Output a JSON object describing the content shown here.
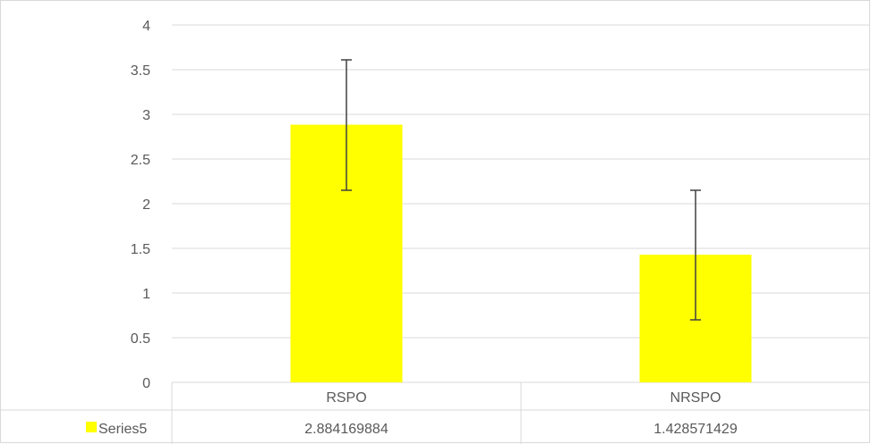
{
  "chart_data": {
    "type": "bar",
    "categories": [
      "RSPO",
      "NRSPO"
    ],
    "series": [
      {
        "name": "Series5",
        "values": [
          2.884169884,
          1.428571429
        ],
        "value_labels": [
          "2.884169884",
          "1.428571429"
        ],
        "error_low": [
          2.15,
          0.7
        ],
        "error_high": [
          3.61,
          2.15
        ],
        "color": "#FFFF00"
      }
    ],
    "ylim": [
      0,
      4
    ],
    "yticks": [
      0,
      0.5,
      1,
      1.5,
      2,
      2.5,
      3,
      3.5,
      4
    ],
    "ytick_labels": [
      "0",
      "0.5",
      "1",
      "1.5",
      "2",
      "2.5",
      "3",
      "3.5",
      "4"
    ],
    "grid": true,
    "data_table": true,
    "colors": {
      "grid": "#d9d9d9",
      "text": "#595959",
      "error_bar": "#404040"
    }
  }
}
